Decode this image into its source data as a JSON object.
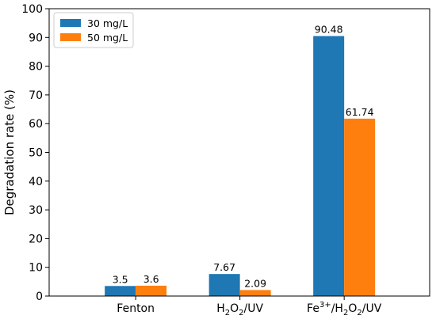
{
  "chart_data": {
    "type": "bar",
    "categories": [
      "Fenton",
      "H2O2/UV",
      "Fe3+/H2O2/UV"
    ],
    "category_labels": [
      [
        {
          "t": "Fenton"
        }
      ],
      [
        {
          "t": "H"
        },
        {
          "t": "2",
          "sub": true
        },
        {
          "t": "O"
        },
        {
          "t": "2",
          "sub": true
        },
        {
          "t": "/UV"
        }
      ],
      [
        {
          "t": "Fe"
        },
        {
          "t": "3+",
          "sup": true
        },
        {
          "t": "/H"
        },
        {
          "t": "2",
          "sub": true
        },
        {
          "t": "O"
        },
        {
          "t": "2",
          "sub": true
        },
        {
          "t": "/UV"
        }
      ]
    ],
    "series": [
      {
        "name": "30 mg/L",
        "values": [
          3.5,
          7.67,
          90.48
        ],
        "labels": [
          "3.5",
          "7.67",
          "90.48"
        ],
        "color": "#1f77b4"
      },
      {
        "name": "50 mg/L",
        "values": [
          3.6,
          2.09,
          61.74
        ],
        "labels": [
          "3.6",
          "2.09",
          "61.74"
        ],
        "color": "#ff7f0e"
      }
    ],
    "title": "",
    "xlabel": "",
    "ylabel": "Degradation rate (%)",
    "ylim": [
      0,
      100
    ],
    "yticks": [
      0,
      10,
      20,
      30,
      40,
      50,
      60,
      70,
      80,
      90,
      100
    ],
    "grid": false,
    "legend_position": "top-left"
  }
}
